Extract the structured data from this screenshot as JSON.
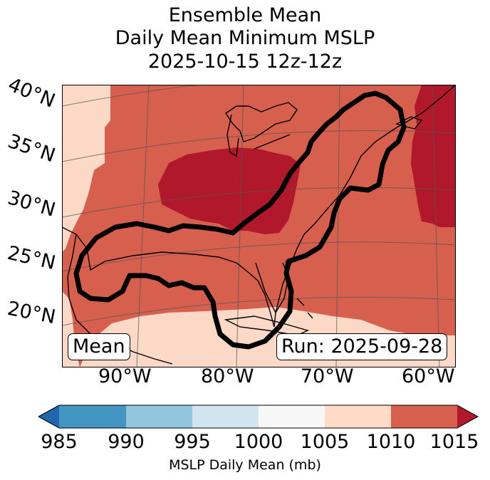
{
  "title": {
    "line1": "Ensemble Mean",
    "line2": "Daily Mean Minimum MSLP",
    "line3": "2025-10-15 12z-12z"
  },
  "map": {
    "lat_labels": [
      "40°N",
      "35°N",
      "30°N",
      "25°N",
      "20°N"
    ],
    "lon_labels": [
      "90°W",
      "80°W",
      "70°W",
      "60°W"
    ],
    "fill_colors": {
      "1005-1010": "#fcd9c7",
      "1010-1015": "#d6604d",
      "above-1015": "#b2182b"
    },
    "contour_color": "#000000",
    "grid_color": "#555555"
  },
  "badges": {
    "stat": "Mean",
    "run": "Run: 2025-09-28"
  },
  "colorbar": {
    "ticks": [
      "985",
      "990",
      "995",
      "1000",
      "1005",
      "1010",
      "1015"
    ],
    "label": "MSLP Daily Mean (mb)",
    "colors": [
      "#2166ac",
      "#4393c3",
      "#92c5de",
      "#d1e5f0",
      "#f7f7f7",
      "#fddbc7",
      "#d6604d",
      "#b2182b"
    ]
  }
}
